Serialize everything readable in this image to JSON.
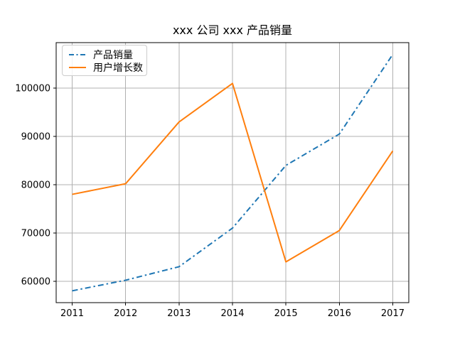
{
  "chart_data": {
    "type": "line",
    "title": "xxx 公司 xxx 产品销量",
    "x": [
      2011,
      2012,
      2013,
      2014,
      2015,
      2016,
      2017
    ],
    "x_tick_labels": [
      "2011",
      "2012",
      "2013",
      "2014",
      "2015",
      "2016",
      "2017"
    ],
    "y_ticks": [
      60000,
      70000,
      80000,
      90000,
      100000
    ],
    "y_tick_labels": [
      "60000",
      "70000",
      "80000",
      "90000",
      "100000"
    ],
    "series": [
      {
        "name": "产品销量",
        "values": [
          58000,
          60200,
          63000,
          71000,
          84000,
          90500,
          107000
        ],
        "color": "#1f77b4",
        "line_style": "dashdot"
      },
      {
        "name": "用户增长数",
        "values": [
          78000,
          80200,
          93000,
          101000,
          64000,
          70500,
          87000
        ],
        "color": "#ff7f0e",
        "line_style": "solid"
      }
    ],
    "xlim": [
      2010.7,
      2017.3
    ],
    "ylim": [
      55550,
      109450
    ],
    "grid": true,
    "grid_color": "#b0b0b0",
    "spine_color": "#000000",
    "background": "#ffffff",
    "legend_position": "upper-left",
    "xlabel": "",
    "ylabel": ""
  }
}
